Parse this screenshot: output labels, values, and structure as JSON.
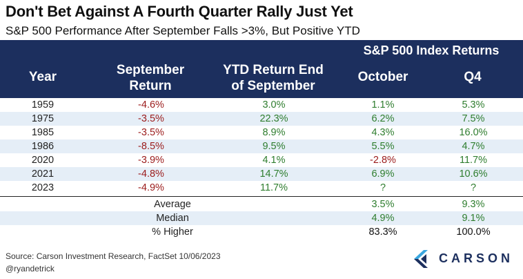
{
  "title": "Don't Bet Against A Fourth Quarter Rally Just Yet",
  "subtitle": "S&P 500 Performance After September Falls >3%, But Positive YTD",
  "header": {
    "group_label": "S&P 500 Index Returns",
    "year": "Year",
    "september_line1": "September",
    "september_line2": "Return",
    "ytd_line1": "YTD Return End",
    "ytd_line2": "of September",
    "october": "October",
    "q4": "Q4"
  },
  "rows": [
    {
      "year": "1959",
      "september": "-4.6%",
      "ytd": "3.0%",
      "october": "1.1%",
      "q4": "5.3%"
    },
    {
      "year": "1975",
      "september": "-3.5%",
      "ytd": "22.3%",
      "october": "6.2%",
      "q4": "7.5%"
    },
    {
      "year": "1985",
      "september": "-3.5%",
      "ytd": "8.9%",
      "october": "4.3%",
      "q4": "16.0%"
    },
    {
      "year": "1986",
      "september": "-8.5%",
      "ytd": "9.5%",
      "october": "5.5%",
      "q4": "4.7%"
    },
    {
      "year": "2020",
      "september": "-3.9%",
      "ytd": "4.1%",
      "october": "-2.8%",
      "q4": "11.7%"
    },
    {
      "year": "2021",
      "september": "-4.8%",
      "ytd": "14.7%",
      "october": "6.9%",
      "q4": "10.6%"
    },
    {
      "year": "2023",
      "september": "-4.9%",
      "ytd": "11.7%",
      "october": "?",
      "q4": "?"
    }
  ],
  "stats": [
    {
      "label": "Average",
      "october": "3.5%",
      "q4": "9.3%"
    },
    {
      "label": "Median",
      "october": "4.9%",
      "q4": "9.1%"
    },
    {
      "label": "% Higher",
      "october": "83.3%",
      "q4": "100.0%"
    }
  ],
  "footer": {
    "source": "Source: Carson Investment Research, FactSet 10/06/2023",
    "handle": "@ryandetrick",
    "logo_text": "CARSON"
  },
  "colors": {
    "header_bg": "#1c2f5e",
    "negative": "#9b1b1b",
    "positive": "#2e7d2e",
    "stripe": "#e5eef7"
  }
}
